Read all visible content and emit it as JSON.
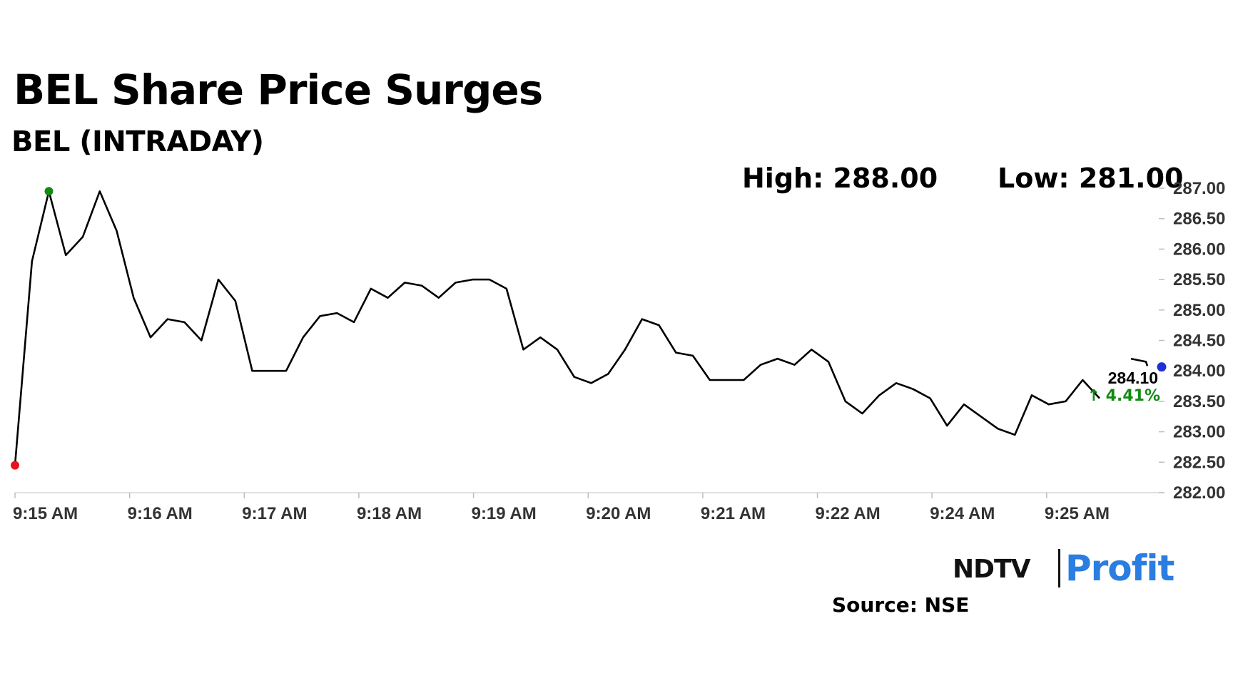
{
  "header": {
    "title": "BEL Share Price Surges",
    "subtitle": "BEL (INTRADAY)",
    "high": "High: 288.00",
    "low": "Low: 281.00"
  },
  "current": {
    "price": "284.10",
    "change": "↑ 4.41%",
    "change_color": "#138a13"
  },
  "brand": {
    "ndtv": "NDTV",
    "profit": "Profit"
  },
  "source": "Source: NSE",
  "colors": {
    "line": "#000000",
    "start_marker": "#e8141b",
    "high_marker": "#138a13",
    "end_marker": "#1f2fd6"
  },
  "chart_data": {
    "type": "line",
    "title": "BEL (INTRADAY)",
    "xlabel": "",
    "ylabel": "",
    "grid": false,
    "yaxis_position": "right",
    "ylim": [
      282,
      287
    ],
    "y_ticks": [
      "287.00",
      "286.50",
      "286.00",
      "285.50",
      "285.00",
      "284.50",
      "284.00",
      "283.50",
      "283.00",
      "282.50",
      "282.00"
    ],
    "y_tick_values": [
      287,
      286.5,
      286,
      285.5,
      285,
      284.5,
      284,
      283.5,
      283,
      282.5,
      282
    ],
    "x_ticks": [
      "9:15 AM",
      "9:16 AM",
      "9:17 AM",
      "9:18 AM",
      "9:19 AM",
      "9:20 AM",
      "9:21 AM",
      "9:22 AM",
      "9:24 AM",
      "9:25 AM"
    ],
    "series": [
      {
        "values": [
          282.45,
          285.8,
          286.95,
          285.9,
          286.2,
          286.95,
          286.3,
          285.2,
          284.55,
          284.85,
          284.8,
          284.5,
          285.5,
          285.15,
          284.0,
          284.0,
          284.0,
          284.55,
          284.9,
          284.95,
          284.8,
          285.35,
          285.2,
          285.45,
          285.4,
          285.2,
          285.45,
          285.5,
          285.5,
          285.35,
          284.35,
          284.55,
          284.35,
          283.9,
          283.8,
          283.95,
          284.35,
          284.85,
          284.75,
          284.3,
          284.25,
          283.85,
          283.85,
          283.85,
          284.1,
          284.2,
          284.1,
          284.35,
          284.15,
          283.5,
          283.3,
          283.6,
          283.8,
          283.7,
          283.55,
          283.1,
          283.45,
          283.25,
          283.05,
          282.95,
          283.6,
          283.45,
          283.5,
          283.85,
          283.55
        ]
      },
      {
        "values": [
          284.2,
          284.15
        ]
      }
    ],
    "markers": [
      {
        "label": "open",
        "value": 282.45
      },
      {
        "label": "day high",
        "value": 286.95
      },
      {
        "label": "last",
        "value": 284.1
      }
    ]
  }
}
